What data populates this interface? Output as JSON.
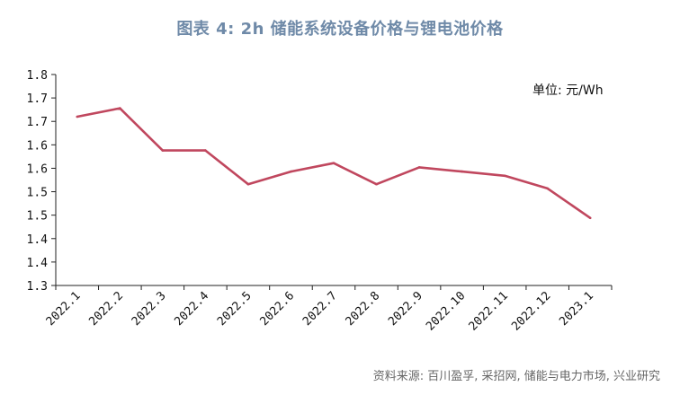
{
  "figure": {
    "title": "图表 4: 2h 储能系统设备价格与锂电池价格",
    "unit": "单位: 元/Wh",
    "source": "资料来源: 百川盈孚, 采招网, 储能与电力市场, 兴业研究"
  },
  "chart_data": {
    "type": "line",
    "title": "图表 4: 2h 储能系统设备价格与锂电池价格",
    "xlabel": "",
    "ylabel": "单位: 元/Wh",
    "categories": [
      "2022.1",
      "2022.2",
      "2022.3",
      "2022.4",
      "2022.5",
      "2022.6",
      "2022.7",
      "2022.8",
      "2022.9",
      "2022.10",
      "2022.11",
      "2022.12",
      "2023.1"
    ],
    "y_ticks": [
      "1.3",
      "1.4",
      "1.4",
      "1.5",
      "1.5",
      "1.6",
      "1.6",
      "1.7",
      "1.7",
      "1.8"
    ],
    "ylim": [
      1.3,
      1.8
    ],
    "grid": false,
    "legend": "none",
    "series": [
      {
        "color": "#c0475e",
        "values": [
          1.7,
          1.72,
          1.62,
          1.62,
          1.54,
          1.57,
          1.59,
          1.54,
          1.58,
          1.57,
          1.56,
          1.53,
          1.46
        ]
      }
    ]
  }
}
